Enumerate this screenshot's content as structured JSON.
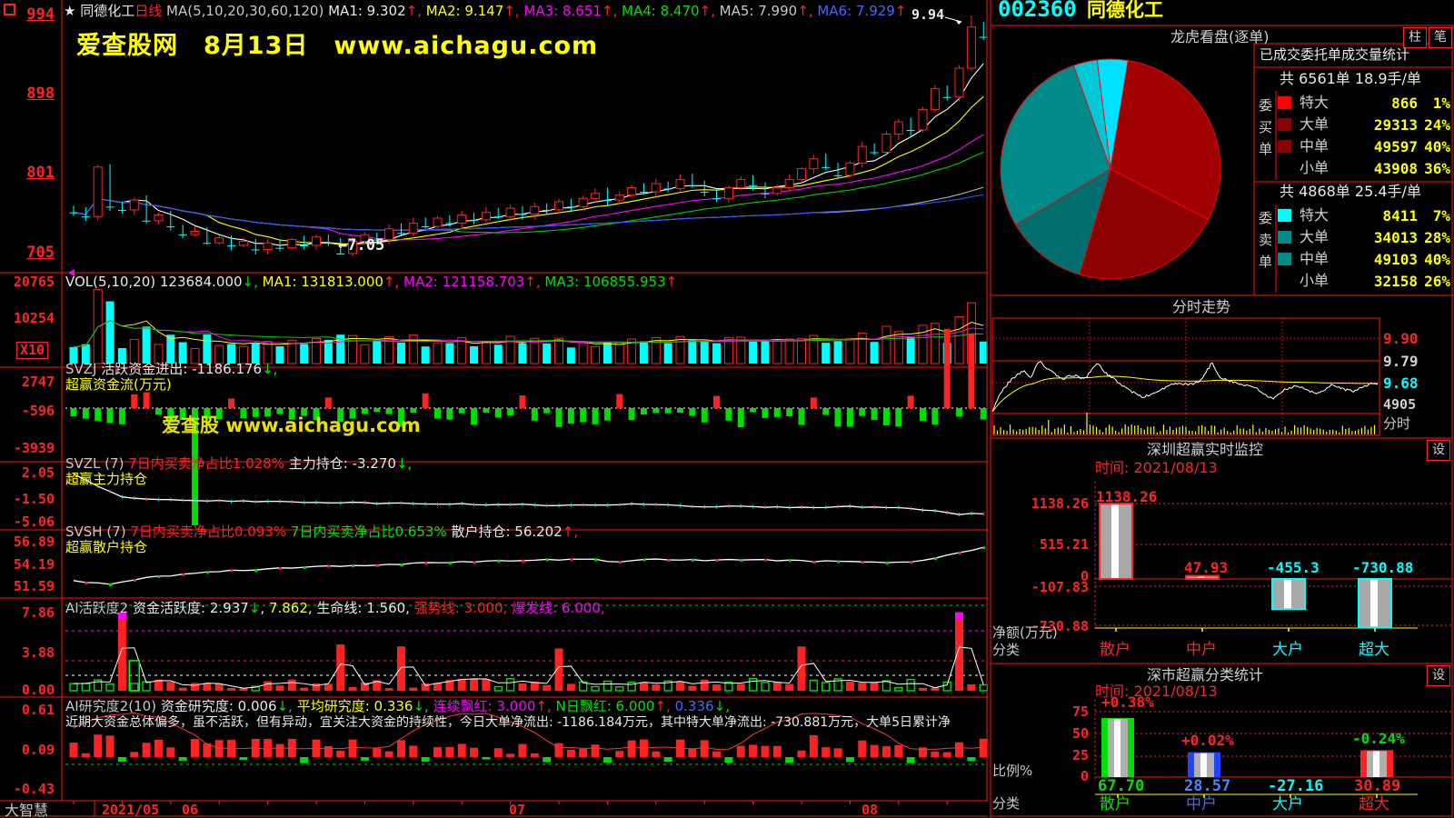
{
  "kline_header": {
    "star": "★",
    "stock": "同德化工",
    "period": "日线",
    "ma_group": "MA(5,10,20,30,60,120)",
    "m1": "MA1: 9.302",
    "m2": "MA2: 9.147",
    "m3": "MA3: 8.651",
    "m4": "MA4: 8.470",
    "m5": "MA5: 7.990",
    "m6": "MA6: 7.929",
    "up": "↑,",
    "up_last": "↑"
  },
  "watermark": {
    "site": "爱查股网",
    "date": "8月13日",
    "url": "www.aichagu.com"
  },
  "watermark2": "爱查股 www.aichagu.com",
  "axis": {
    "price": [
      "994",
      "898",
      "801",
      "705"
    ],
    "vol": [
      "20765",
      "10254"
    ],
    "vol_unit": "X10",
    "svzj": [
      "2747",
      "-596",
      "-3939"
    ],
    "svzl": [
      "2.05",
      "-1.50",
      "-5.06"
    ],
    "svsh": [
      "56.89",
      "54.19",
      "51.59"
    ],
    "ai1": [
      "7.86",
      "3.88",
      "0.00"
    ],
    "ai2": [
      "0.61",
      "0.09",
      "-0.43"
    ]
  },
  "vol_header": {
    "a": "VOL(5,10,20) 123684.000",
    "arr": "↓,",
    "m1": "MA1: 131813.000",
    "m2": "MA2: 121158.703",
    "m3": "MA3: 106855.953",
    "up": "↑,",
    "up_last": "↑"
  },
  "svzj_header": {
    "a": "SVZJ",
    "b": "活跃资金进出: -1186.176",
    "arr": "↓,",
    "l2": "超赢资金流(万元)"
  },
  "svzl_header": {
    "a": "SVZL (7)",
    "b": "7日内买卖净占比1.028%",
    "c": "主力持仓: -3.270",
    "arr": "↓,",
    "l2": "超赢主力持仓"
  },
  "svsh_header": {
    "a": "SVSH (7)",
    "b": "7日内买卖净占比0.093%",
    "c": "7日内买卖净占比0.653%",
    "d": "散户持仓: 56.202",
    "arr": "↑,",
    "l2": "超赢散户持仓"
  },
  "ai1_header": {
    "a": "AI活跃度2",
    "b": "资金活跃度: 2.937",
    "arr": "↓",
    "c": ",",
    "d": "7.862,",
    "e": "生命线: 1.560,",
    "f": "强势线: 3.000,",
    "g": "爆发线: 6.000,"
  },
  "ai2_header": {
    "a": "AI研究度2(10)",
    "b": "资金研究度: 0.006",
    "ar1": "↓,",
    "c": "平均研究度: 0.336",
    "ar2": "↓,",
    "d": "连续飘红: 3.000",
    "ar3": "↑,",
    "e": "N日飘红: 6.000",
    "ar4": "↑,",
    "f": "0.336",
    "ar5": "↓,"
  },
  "commentary": "近期大资金总体偏多，虽不活跃，但有异动，宜关注大资金的持续性，今日大单净流出: -1186.184万元，其中特大单净流出: -730.881万元，大单5日累计净",
  "annotations": {
    "high": "9.94",
    "low": "←7.05"
  },
  "dates": [
    "2021/05",
    "06",
    "07",
    "08"
  ],
  "status_bar": {
    "brand": "大智慧"
  },
  "right": {
    "code": "002360",
    "name": "同德化工",
    "pane1": {
      "title": "龙虎看盘(逐单)",
      "btn1": "柱",
      "btn2": "笔",
      "stats_title": "已成交委托单成交量统计",
      "buy": {
        "total": "共 6561单 18.9手/单",
        "side": "委买单",
        "rows": [
          {
            "label": "特大",
            "value": "866",
            "pct": "1%",
            "swatch": "#ff0000"
          },
          {
            "label": "大单",
            "value": "29313",
            "pct": "24%",
            "swatch": "#8b0000"
          },
          {
            "label": "中单",
            "value": "49597",
            "pct": "40%",
            "swatch": "#8b0000"
          },
          {
            "label": "小单",
            "value": "43908",
            "pct": "36%",
            "swatch": ""
          }
        ]
      },
      "sell": {
        "total": "共 4868单 25.4手/单",
        "side": "委卖单",
        "rows": [
          {
            "label": "特大",
            "value": "8411",
            "pct": "7%",
            "swatch": "#00ffff"
          },
          {
            "label": "大单",
            "value": "34013",
            "pct": "28%",
            "swatch": "#008b8b"
          },
          {
            "label": "中单",
            "value": "49103",
            "pct": "40%",
            "swatch": "#008b8b"
          },
          {
            "label": "小单",
            "value": "32158",
            "pct": "26%",
            "swatch": ""
          }
        ]
      }
    },
    "pane2": {
      "title": "分时走势",
      "labels": [
        "9.90",
        "9.79",
        "9.68",
        "4905",
        "分时"
      ]
    },
    "pane3": {
      "title": "深圳超赢实时监控",
      "settings": "设",
      "time": "时间: 2021/08/13",
      "axis": [
        "1138.26",
        "515.21",
        "0",
        "-107.83",
        "-730.88"
      ],
      "unit": "净额(万元)",
      "cls": "分类",
      "bars": [
        {
          "cat": "散户",
          "label": "1138.26"
        },
        {
          "cat": "中户",
          "label": "47.93"
        },
        {
          "cat": "大户",
          "label": "-455.3"
        },
        {
          "cat": "超大",
          "label": "-730.88"
        }
      ]
    },
    "pane4": {
      "title": "深市超赢分类统计",
      "settings": "设",
      "time": "时间: 2021/08/13",
      "axis": [
        "75",
        "50",
        "25",
        "0"
      ],
      "unit": "比例%",
      "cls": "分类",
      "bars": [
        {
          "cat": "散户",
          "value": "67.70",
          "pct": "+0.38%"
        },
        {
          "cat": "中户",
          "value": "28.57",
          "pct": "+0.02%"
        },
        {
          "cat": "大户",
          "value": "-27.16",
          "pct": ""
        },
        {
          "cat": "超大",
          "value": "30.89",
          "pct": "-0.24%"
        }
      ]
    }
  },
  "chart_data": [
    {
      "type": "candlestick",
      "title": "同德化工 日线",
      "ylim": [
        7.05,
        9.94
      ],
      "high_label": 9.94,
      "low_label": 7.05,
      "ma_latest": [
        9.302,
        9.147,
        8.651,
        8.47,
        7.99,
        7.929
      ],
      "closes": [
        7.55,
        7.5,
        8.1,
        7.62,
        7.58,
        7.7,
        7.45,
        7.52,
        7.38,
        7.28,
        7.32,
        7.18,
        7.24,
        7.15,
        7.2,
        7.1,
        7.18,
        7.12,
        7.22,
        7.15,
        7.25,
        7.18,
        7.05,
        7.2,
        7.28,
        7.22,
        7.35,
        7.3,
        7.42,
        7.38,
        7.48,
        7.42,
        7.52,
        7.46,
        7.55,
        7.5,
        7.6,
        7.53,
        7.62,
        7.58,
        7.68,
        7.62,
        7.72,
        7.78,
        7.7,
        7.76,
        7.85,
        7.8,
        7.9,
        7.84,
        7.95,
        7.88,
        7.8,
        7.72,
        7.85,
        7.95,
        7.88,
        7.78,
        7.85,
        7.95,
        8.08,
        8.2,
        8.1,
        8.0,
        8.15,
        8.35,
        8.28,
        8.5,
        8.65,
        8.55,
        8.8,
        9.05,
        8.95,
        9.3,
        9.8,
        9.68
      ],
      "date_ticks": [
        [
          1,
          "2021/05"
        ],
        [
          10,
          "06"
        ],
        [
          37,
          "07"
        ],
        [
          66,
          "08"
        ]
      ]
    },
    {
      "type": "bar",
      "name": "VOL",
      "latest": 123684.0,
      "ma": [
        131813.0,
        121158.703,
        106855.953
      ],
      "ylim": [
        0,
        20765
      ]
    },
    {
      "type": "bar",
      "name": "SVZJ 超赢资金流(万元)",
      "latest": -1186.176,
      "ylim": [
        -3939,
        2747
      ],
      "specials": {
        "6": 520,
        "10": -3850,
        "72": 2600,
        "74": 2450
      }
    },
    {
      "type": "line",
      "name": "SVZL 超赢主力持仓",
      "latest": -3.27,
      "ylim": [
        -5.06,
        2.05
      ],
      "points": [
        [
          0,
          1.9
        ],
        [
          2,
          0.3
        ],
        [
          4,
          -1.1
        ],
        [
          8,
          -1.5
        ],
        [
          14,
          -1.65
        ],
        [
          22,
          -1.85
        ],
        [
          30,
          -2.0
        ],
        [
          40,
          -2.2
        ],
        [
          46,
          -2.1
        ],
        [
          52,
          -2.35
        ],
        [
          58,
          -2.45
        ],
        [
          64,
          -2.4
        ],
        [
          68,
          -2.55
        ],
        [
          71,
          -2.9
        ],
        [
          73,
          -3.4
        ],
        [
          75,
          -3.27
        ]
      ]
    },
    {
      "type": "line",
      "name": "SVSH 超赢散户持仓",
      "latest": 56.202,
      "ylim": [
        51.59,
        56.89
      ],
      "points": [
        [
          0,
          52.3
        ],
        [
          3,
          51.75
        ],
        [
          6,
          52.6
        ],
        [
          10,
          53.2
        ],
        [
          14,
          53.5
        ],
        [
          18,
          53.8
        ],
        [
          22,
          54.0
        ],
        [
          26,
          54.2
        ],
        [
          30,
          54.4
        ],
        [
          34,
          54.55
        ],
        [
          38,
          54.7
        ],
        [
          42,
          54.85
        ],
        [
          45,
          54.5
        ],
        [
          48,
          54.8
        ],
        [
          52,
          54.7
        ],
        [
          56,
          54.75
        ],
        [
          60,
          54.6
        ],
        [
          64,
          54.55
        ],
        [
          68,
          54.4
        ],
        [
          71,
          54.9
        ],
        [
          73,
          55.6
        ],
        [
          75,
          56.2
        ]
      ]
    },
    {
      "type": "bar",
      "name": "AI活跃度2",
      "latest": 2.937,
      "ylim": [
        0,
        7.86
      ],
      "thresholds": {
        "生命线": 1.56,
        "强势线": 3.0,
        "爆发线": 6.0
      },
      "spikes": {
        "4": 7.8,
        "22": 4.6,
        "27": 4.4,
        "40": 4.2,
        "60": 4.4,
        "73": 7.8
      }
    },
    {
      "type": "bar",
      "name": "AI研究度2",
      "latest": 0.006,
      "avg": 0.336,
      "ylim": [
        -0.43,
        0.61
      ]
    },
    {
      "type": "pie",
      "name": "龙虎看盘(逐单)",
      "slices": [
        {
          "color": "#00e0ff",
          "pct": 4.5
        },
        {
          "color": "#a00000",
          "pct": 30
        },
        {
          "color": "#8b0000",
          "pct": 22
        },
        {
          "color": "#006e6e",
          "pct": 12
        },
        {
          "color": "#008b8b",
          "pct": 28
        },
        {
          "color": "#00c8d7",
          "pct": 3.5
        }
      ]
    },
    {
      "type": "line",
      "name": "分时走势",
      "prev_close": 9.79,
      "last": 9.68,
      "range_labels": [
        9.9,
        9.79,
        9.68
      ],
      "points": [
        [
          0,
          9.54
        ],
        [
          0.02,
          9.63
        ],
        [
          0.05,
          9.7
        ],
        [
          0.08,
          9.74
        ],
        [
          0.1,
          9.71
        ],
        [
          0.12,
          9.79
        ],
        [
          0.15,
          9.74
        ],
        [
          0.18,
          9.7
        ],
        [
          0.21,
          9.72
        ],
        [
          0.24,
          9.7
        ],
        [
          0.27,
          9.78
        ],
        [
          0.3,
          9.72
        ],
        [
          0.33,
          9.68
        ],
        [
          0.36,
          9.64
        ],
        [
          0.39,
          9.61
        ],
        [
          0.42,
          9.63
        ],
        [
          0.45,
          9.66
        ],
        [
          0.48,
          9.68
        ],
        [
          0.51,
          9.67
        ],
        [
          0.54,
          9.69
        ],
        [
          0.57,
          9.78
        ],
        [
          0.59,
          9.71
        ],
        [
          0.62,
          9.69
        ],
        [
          0.65,
          9.67
        ],
        [
          0.68,
          9.66
        ],
        [
          0.71,
          9.62
        ],
        [
          0.73,
          9.6
        ],
        [
          0.76,
          9.65
        ],
        [
          0.79,
          9.67
        ],
        [
          0.82,
          9.64
        ],
        [
          0.85,
          9.63
        ],
        [
          0.88,
          9.67
        ],
        [
          0.91,
          9.65
        ],
        [
          0.94,
          9.64
        ],
        [
          0.97,
          9.67
        ],
        [
          1,
          9.68
        ]
      ]
    },
    {
      "type": "bar",
      "name": "深圳超赢实时监控 净额(万元)",
      "categories": [
        "散户",
        "中户",
        "大户",
        "超大"
      ],
      "values": [
        1138.26,
        47.93,
        -455.3,
        -730.88
      ],
      "ylim": [
        -730.88,
        1138.26
      ]
    },
    {
      "type": "bar",
      "name": "深市超赢分类统计 比例%",
      "categories": [
        "散户",
        "中户",
        "大户",
        "超大"
      ],
      "values": [
        67.7,
        28.57,
        -27.16,
        30.89
      ],
      "pct_change": [
        "+0.38%",
        "+0.02%",
        "",
        "-0.24%"
      ],
      "ylim": [
        0,
        75
      ]
    }
  ]
}
